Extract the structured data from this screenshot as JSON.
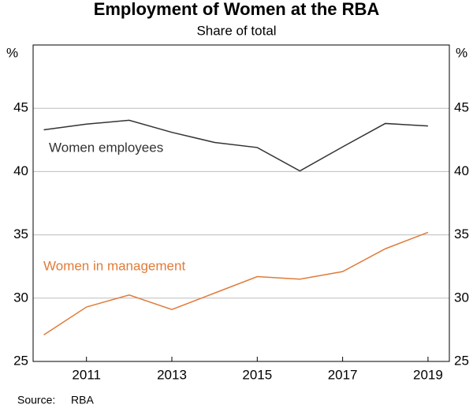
{
  "chart_data": {
    "type": "line",
    "title": "Employment of Women at the RBA",
    "subtitle": "Share of total",
    "y_unit": "%",
    "source_label": "Source:",
    "source": "RBA",
    "x": [
      2010,
      2011,
      2012,
      2013,
      2014,
      2015,
      2016,
      2017,
      2018,
      2019
    ],
    "series": [
      {
        "name": "Women employees",
        "color": "#333333",
        "values": [
          43.3,
          43.75,
          44.05,
          43.1,
          42.3,
          41.9,
          40.05,
          41.95,
          43.8,
          43.6
        ]
      },
      {
        "name": "Women in management",
        "color": "#e07b39",
        "values": [
          27.1,
          29.3,
          30.25,
          29.1,
          30.4,
          31.7,
          31.5,
          32.1,
          33.9,
          35.2
        ]
      }
    ],
    "xlim": [
      2009.75,
      2019.5
    ],
    "xticks": [
      2011,
      2013,
      2015,
      2017,
      2019
    ],
    "ylim": [
      25,
      50
    ],
    "yticks": [
      25,
      30,
      35,
      40,
      45
    ],
    "grid": true
  }
}
